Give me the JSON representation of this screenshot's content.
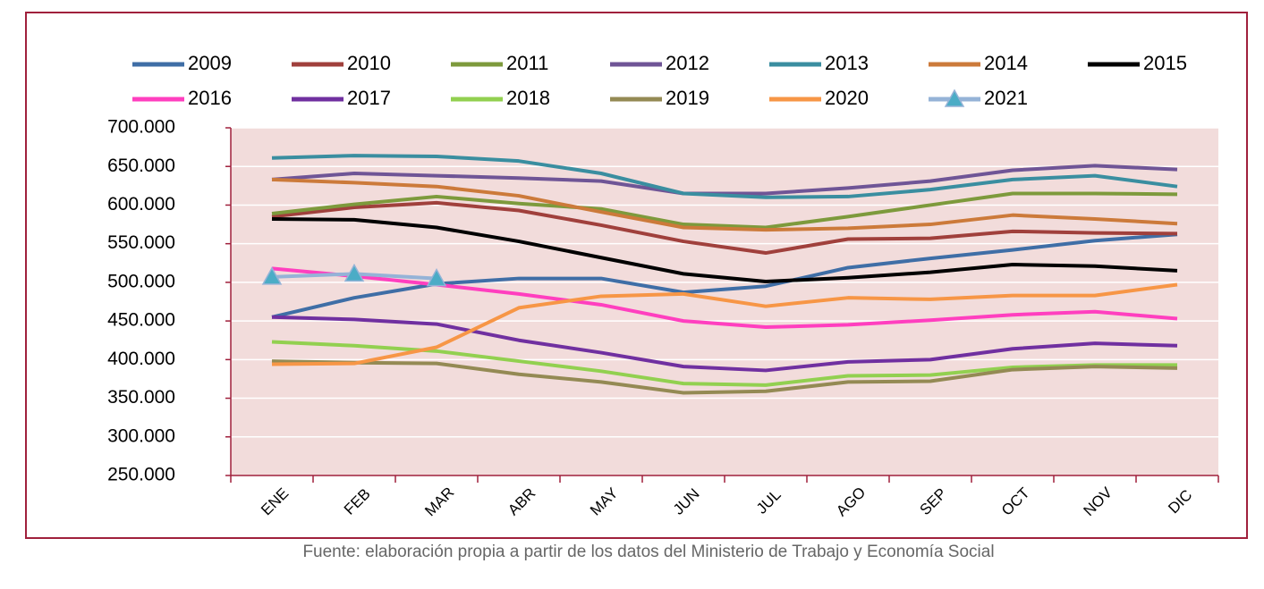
{
  "chart_data": {
    "type": "line",
    "categories": [
      "ENE",
      "FEB",
      "MAR",
      "ABR",
      "MAY",
      "JUN",
      "JUL",
      "AGO",
      "SEP",
      "OCT",
      "NOV",
      "DIC"
    ],
    "series": [
      {
        "name": "2009",
        "color": "#3f6ea6",
        "values": [
          455000,
          480000,
          498000,
          505000,
          505000,
          487000,
          495000,
          519000,
          531000,
          542000,
          554000,
          562000
        ]
      },
      {
        "name": "2010",
        "color": "#a0403c",
        "values": [
          585000,
          597000,
          603000,
          593000,
          574000,
          553000,
          538000,
          556000,
          557000,
          566000,
          564000,
          563000
        ]
      },
      {
        "name": "2011",
        "color": "#7d9a3c",
        "values": [
          589000,
          601000,
          611000,
          602000,
          595000,
          575000,
          571000,
          585000,
          600000,
          615000,
          615000,
          614000
        ]
      },
      {
        "name": "2012",
        "color": "#6f5596",
        "values": [
          633000,
          641000,
          638000,
          635000,
          631000,
          615000,
          615000,
          622000,
          631000,
          645000,
          651000,
          646000
        ]
      },
      {
        "name": "2013",
        "color": "#3a8ea0",
        "values": [
          661000,
          664000,
          663000,
          657000,
          641000,
          615000,
          610000,
          611000,
          620000,
          633000,
          638000,
          624000
        ]
      },
      {
        "name": "2014",
        "color": "#cc7a3a",
        "values": [
          633000,
          629000,
          624000,
          612000,
          591000,
          571000,
          568000,
          570000,
          575000,
          587000,
          582000,
          576000
        ]
      },
      {
        "name": "2015",
        "color": "#000000",
        "values": [
          582000,
          581000,
          571000,
          553000,
          532000,
          511000,
          501000,
          506000,
          513000,
          523000,
          521000,
          515000
        ]
      },
      {
        "name": "2016",
        "color": "#ff3fbf",
        "values": [
          518000,
          508000,
          497000,
          485000,
          471000,
          450000,
          442000,
          445000,
          451000,
          458000,
          462000,
          453000
        ]
      },
      {
        "name": "2017",
        "color": "#7030a0",
        "values": [
          455000,
          452000,
          446000,
          425000,
          409000,
          391000,
          386000,
          397000,
          400000,
          414000,
          421000,
          418000
        ]
      },
      {
        "name": "2018",
        "color": "#92d050",
        "values": [
          423000,
          418000,
          411000,
          398000,
          385000,
          369000,
          367000,
          379000,
          380000,
          390000,
          393000,
          393000
        ]
      },
      {
        "name": "2019",
        "color": "#948a54",
        "values": [
          398000,
          396000,
          395000,
          381000,
          371000,
          357000,
          359000,
          371000,
          372000,
          387000,
          391000,
          389000
        ]
      },
      {
        "name": "2020",
        "color": "#f79646",
        "values": [
          394000,
          395000,
          416000,
          467000,
          482000,
          485000,
          469000,
          480000,
          478000,
          483000,
          483000,
          497000
        ]
      },
      {
        "name": "2021",
        "color": "#95b3d7",
        "marker": "triangle",
        "marker_color": "#4bacc6",
        "values": [
          507000,
          511000,
          505000,
          null,
          null,
          null,
          null,
          null,
          null,
          null,
          null,
          null
        ]
      }
    ],
    "ylim": [
      250000,
      700000
    ],
    "yticks": [
      {
        "value": 250000,
        "label": "250.000"
      },
      {
        "value": 300000,
        "label": "300.000"
      },
      {
        "value": 350000,
        "label": "350.000"
      },
      {
        "value": 400000,
        "label": "400.000"
      },
      {
        "value": 450000,
        "label": "450.000"
      },
      {
        "value": 500000,
        "label": "500.000"
      },
      {
        "value": 550000,
        "label": "550.000"
      },
      {
        "value": 600000,
        "label": "600.000"
      },
      {
        "value": 650000,
        "label": "650.000"
      },
      {
        "value": 700000,
        "label": "700.000"
      }
    ],
    "grid": true,
    "legend": "top",
    "source": "Fuente: elaboración propia a partir de los datos del Ministerio de Trabajo y Economía Social"
  }
}
